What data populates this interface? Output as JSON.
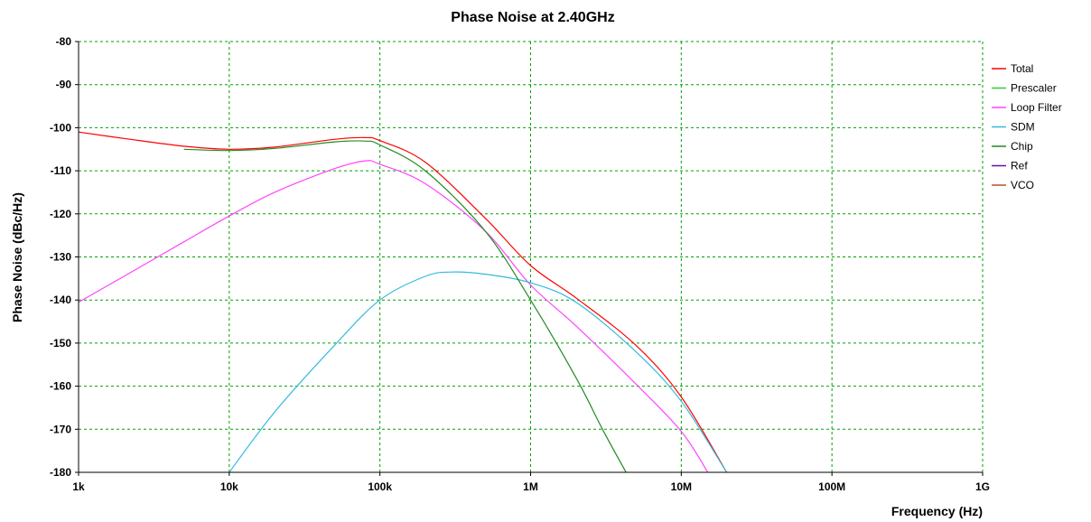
{
  "chart_data": {
    "type": "line",
    "title": "Phase Noise at 2.40GHz",
    "xlabel": "Frequency (Hz)",
    "ylabel": "Phase Noise (dBc/Hz)",
    "x_scale": "log",
    "xlim": [
      1000,
      1000000000
    ],
    "ylim": [
      -180,
      -80
    ],
    "x_ticks": [
      1000,
      10000,
      100000,
      1000000,
      10000000,
      100000000,
      1000000000
    ],
    "x_tick_labels": [
      "1k",
      "10k",
      "100k",
      "1M",
      "10M",
      "100M",
      "1G"
    ],
    "y_ticks": [
      -80,
      -90,
      -100,
      -110,
      -120,
      -130,
      -140,
      -150,
      -160,
      -170,
      -180
    ],
    "y_tick_labels": [
      "-80",
      "-90",
      "-100",
      "-110",
      "-120",
      "-130",
      "-140",
      "-150",
      "-160",
      "-170",
      "-180"
    ],
    "grid": true,
    "grid_color": "#00a000",
    "legend_position": "right",
    "series": [
      {
        "name": "Total",
        "color": "#ff0000",
        "x": [
          1000,
          2000,
          5000,
          10000,
          20000,
          50000,
          80000,
          100000,
          200000,
          500000,
          1000000,
          2000000,
          5000000,
          10000000,
          20000000
        ],
        "y": [
          -101,
          -102.5,
          -104.3,
          -105,
          -104.5,
          -102.7,
          -102.3,
          -103,
          -108,
          -121,
          -132,
          -139.5,
          -150.5,
          -162.5,
          -180
        ]
      },
      {
        "name": "Prescaler",
        "color": "#33cc33",
        "x": [],
        "y": []
      },
      {
        "name": "Loop Filter",
        "color": "#ff44ff",
        "x": [
          1000,
          2000,
          5000,
          10000,
          20000,
          50000,
          80000,
          100000,
          200000,
          500000,
          1000000,
          2000000,
          5000000,
          10000000,
          15000000
        ],
        "y": [
          -140.5,
          -134.5,
          -126.5,
          -120.5,
          -115,
          -109.5,
          -107.7,
          -108.5,
          -113,
          -124,
          -136.5,
          -146,
          -159.5,
          -170.5,
          -180
        ]
      },
      {
        "name": "SDM",
        "color": "#33bbdd",
        "x": [
          10000,
          20000,
          50000,
          100000,
          200000,
          300000,
          500000,
          1000000,
          2000000,
          5000000,
          10000000,
          20000000
        ],
        "y": [
          -180,
          -166,
          -150.5,
          -140,
          -134.5,
          -133.5,
          -134,
          -136,
          -140.5,
          -152,
          -163.5,
          -180
        ]
      },
      {
        "name": "Chip",
        "color": "#228b22",
        "x": [
          5000,
          10000,
          20000,
          50000,
          80000,
          100000,
          200000,
          500000,
          1000000,
          2000000,
          3000000,
          4300000
        ],
        "y": [
          -105,
          -105.3,
          -104.8,
          -103.3,
          -103.1,
          -104,
          -110,
          -124,
          -140,
          -158,
          -170,
          -180
        ]
      },
      {
        "name": "Ref",
        "color": "#6a0dad",
        "x": [],
        "y": []
      },
      {
        "name": "VCO",
        "color": "#b5502a",
        "x": [],
        "y": []
      }
    ]
  }
}
